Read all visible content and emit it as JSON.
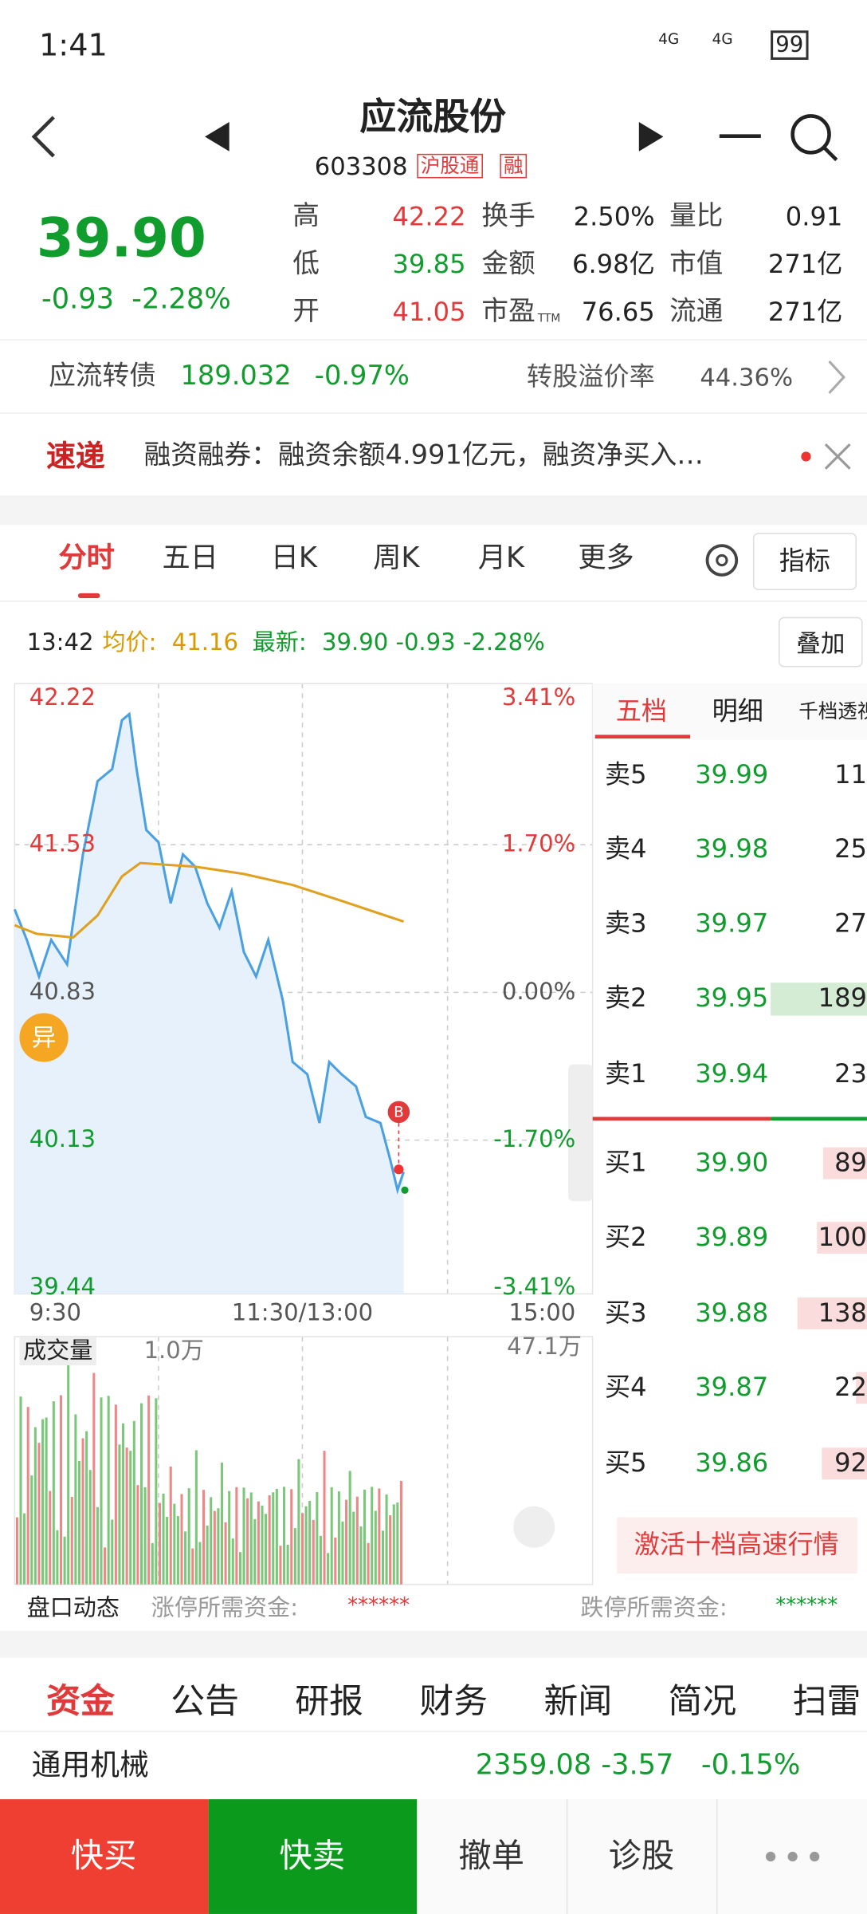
{
  "status": {
    "time": "1:41",
    "battery": "99",
    "network": "4G"
  },
  "header": {
    "name": "应流股份",
    "code": "603308",
    "tags": [
      "沪股通",
      "融"
    ]
  },
  "quote": {
    "price": "39.90",
    "change": "-0.93",
    "percent": "-2.28%",
    "stats": [
      {
        "label": "高",
        "value": "42.22"
      },
      {
        "label": "换手",
        "value": "2.50%"
      },
      {
        "label": "量比",
        "value": "0.91"
      },
      {
        "label": "低",
        "value": "39.85"
      },
      {
        "label": "金额",
        "value": "6.98亿"
      },
      {
        "label": "市值",
        "value": "271亿"
      },
      {
        "label": "开",
        "value": "41.05"
      },
      {
        "label": "市盈",
        "sub": "TTM",
        "value": "76.65"
      },
      {
        "label": "流通",
        "value": "271亿"
      }
    ]
  },
  "bond": {
    "name": "应流转债",
    "price": "189.032",
    "change": "-0.97%",
    "premium_label": "转股溢价率",
    "premium": "44.36%"
  },
  "news": {
    "badge": "速递",
    "text": "融资融券：融资余额4.991亿元，融资净买入…"
  },
  "tabs": [
    "分时",
    "五日",
    "日K",
    "周K",
    "月K",
    "更多"
  ],
  "indicator_button": "指标",
  "info": {
    "time": "13:42",
    "avg_label": "均价:",
    "avg": "41.16",
    "latest_label": "最新:",
    "latest": "39.90 -0.93 -2.28%",
    "overlay": "叠加"
  },
  "chart": {
    "price_labels": [
      "42.22",
      "41.53",
      "40.83",
      "40.13",
      "39.44"
    ],
    "pct_labels": [
      "3.41%",
      "1.70%",
      "0.00%",
      "-1.70%",
      "-3.41%"
    ],
    "time_labels": [
      "9:30",
      "11:30/13:00",
      "15:00"
    ],
    "alert_badge": "异",
    "buy_badge": "B",
    "volume_label": "成交量",
    "volume_unit": "1.0万",
    "volume_max": "47.1万"
  },
  "order_book": {
    "tabs": [
      "五档",
      "明细",
      "千档透视"
    ],
    "sells": [
      {
        "label": "卖5",
        "price": "39.99",
        "volume": "11"
      },
      {
        "label": "卖4",
        "price": "39.98",
        "volume": "25"
      },
      {
        "label": "卖3",
        "price": "39.97",
        "volume": "27"
      },
      {
        "label": "卖2",
        "price": "39.95",
        "volume": "189"
      },
      {
        "label": "卖1",
        "price": "39.94",
        "volume": "23"
      }
    ],
    "buys": [
      {
        "label": "买1",
        "price": "39.90",
        "volume": "89"
      },
      {
        "label": "买2",
        "price": "39.89",
        "volume": "100"
      },
      {
        "label": "买3",
        "price": "39.88",
        "volume": "138"
      },
      {
        "label": "买4",
        "price": "39.87",
        "volume": "22"
      },
      {
        "label": "买5",
        "price": "39.86",
        "volume": "92"
      }
    ],
    "activate": "激活十档高速行情"
  },
  "pankou": {
    "title": "盘口动态",
    "limit_up_label": "涨停所需资金:",
    "limit_up": "******",
    "limit_down_label": "跌停所需资金:",
    "limit_down": "******"
  },
  "bottom_tabs": [
    "资金",
    "公告",
    "研报",
    "财务",
    "新闻",
    "简况",
    "扫雷"
  ],
  "industry": {
    "name": "通用机械",
    "price": "2359.08",
    "change": "-3.57",
    "percent": "-0.15%"
  },
  "actions": [
    "快买",
    "快卖",
    "撤单",
    "诊股"
  ]
}
